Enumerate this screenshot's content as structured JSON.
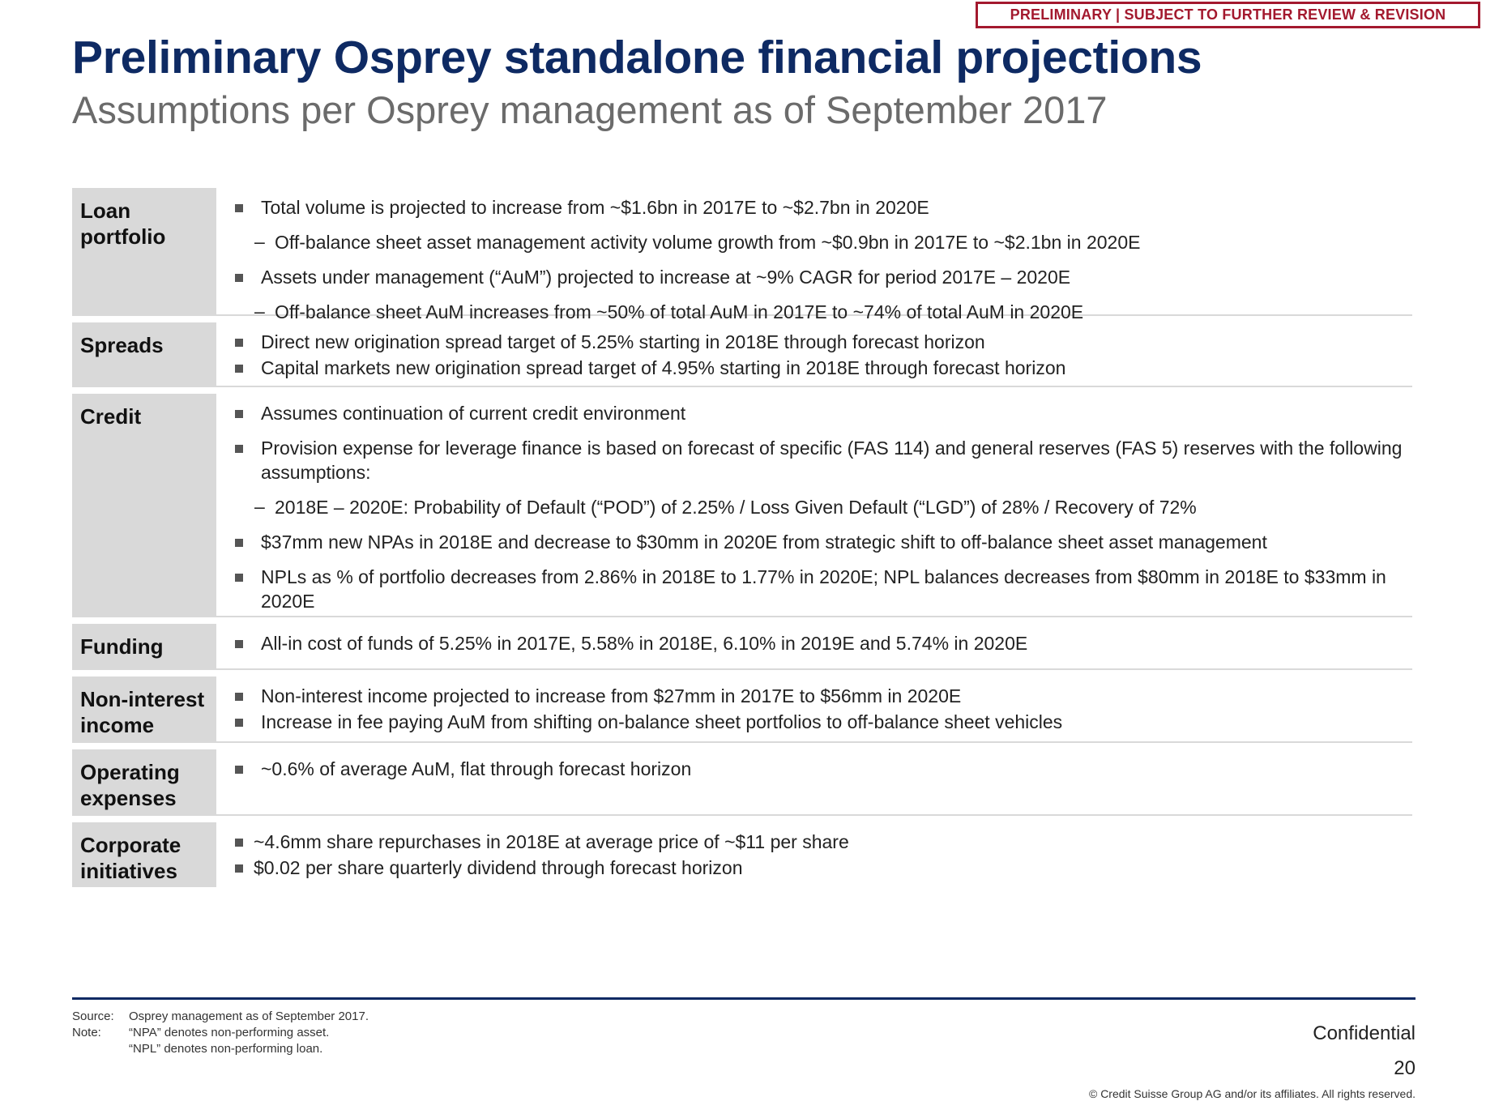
{
  "stamp": "PRELIMINARY | SUBJECT TO FURTHER REVIEW & REVISION",
  "title": "Preliminary Osprey standalone financial projections",
  "subtitle": "Assumptions per Osprey management as of September 2017",
  "sections": [
    {
      "label": "Loan portfolio",
      "items": [
        "Total volume is projected to increase from ~$1.6bn in 2017E to ~$2.7bn in 2020E",
        "Off-balance sheet asset management activity volume growth from ~$0.9bn in 2017E to ~$2.1bn in 2020E",
        "Assets under management (“AuM”) projected to increase at ~9% CAGR for period 2017E – 2020E",
        "Off-balance sheet AuM increases from ~50% of total AuM in 2017E to ~74% of total AuM in 2020E"
      ]
    },
    {
      "label": "Spreads",
      "items": [
        "Direct new origination spread target of 5.25% starting in 2018E through forecast horizon",
        "Capital markets new origination spread target of 4.95% starting in 2018E through forecast horizon"
      ]
    },
    {
      "label": "Credit",
      "items": [
        "Assumes continuation of current credit environment",
        "Provision expense for leverage finance is based on forecast of specific (FAS 114) and general reserves (FAS 5) reserves with the following assumptions:",
        "2018E – 2020E: Probability of Default (“POD”) of 2.25% / Loss Given Default (“LGD”) of 28% / Recovery of 72%",
        "$37mm new NPAs in 2018E and decrease to $30mm in 2020E from strategic shift to off-balance sheet asset management",
        "NPLs as % of portfolio decreases from 2.86% in 2018E to 1.77% in 2020E; NPL balances decreases from $80mm in 2018E to $33mm in 2020E"
      ]
    },
    {
      "label": "Funding",
      "items": [
        "All-in cost of funds of 5.25% in 2017E, 5.58% in 2018E, 6.10% in 2019E and 5.74% in 2020E"
      ]
    },
    {
      "label": "Non-interest income",
      "items": [
        "Non-interest income projected to increase from $27mm in 2017E to $56mm in 2020E",
        "Increase in fee paying AuM from shifting on-balance sheet portfolios to off-balance sheet vehicles"
      ]
    },
    {
      "label": "Operating expenses",
      "items": [
        "~0.6% of average AuM, flat through forecast horizon"
      ]
    },
    {
      "label": "Corporate initiatives",
      "items": [
        "~4.6mm share repurchases in 2018E at average price of ~$11 per share",
        "$0.02 per share quarterly dividend through forecast horizon"
      ]
    }
  ],
  "footer": {
    "source_label": "Source:",
    "source_text": "Osprey management as of September 2017.",
    "note_label": "Note:",
    "note_line1": "“NPA” denotes non-performing asset.",
    "note_line2": "“NPL” denotes non-performing loan.",
    "confidential": "Confidential",
    "page_number": "20",
    "copyright": "© Credit Suisse Group AG and/or its affiliates. All rights reserved."
  }
}
